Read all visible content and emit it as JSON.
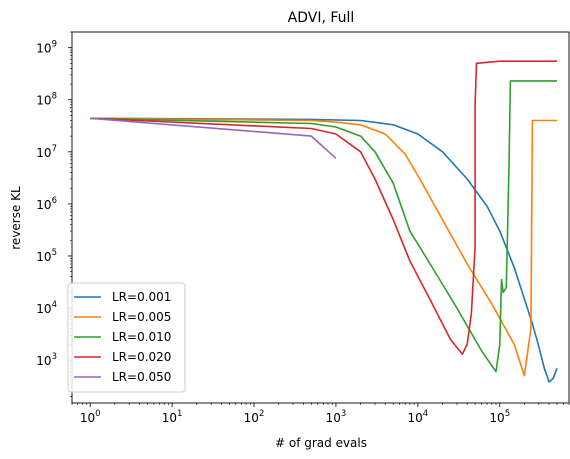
{
  "chart_data": {
    "type": "line",
    "title": "ADVI, Full",
    "xlabel": "# of grad evals",
    "ylabel": "reverse KL",
    "xscale": "log",
    "yscale": "log",
    "xlim": [
      0.6,
      700000
    ],
    "ylim": [
      150,
      2000000000
    ],
    "x_ticks": [
      {
        "base": "10",
        "exp": "0",
        "value": 1
      },
      {
        "base": "10",
        "exp": "1",
        "value": 10
      },
      {
        "base": "10",
        "exp": "2",
        "value": 100
      },
      {
        "base": "10",
        "exp": "3",
        "value": 1000
      },
      {
        "base": "10",
        "exp": "4",
        "value": 10000
      },
      {
        "base": "10",
        "exp": "5",
        "value": 100000
      }
    ],
    "y_ticks": [
      {
        "base": "10",
        "exp": "3",
        "value": 1000
      },
      {
        "base": "10",
        "exp": "4",
        "value": 10000
      },
      {
        "base": "10",
        "exp": "5",
        "value": 100000
      },
      {
        "base": "10",
        "exp": "6",
        "value": 1000000
      },
      {
        "base": "10",
        "exp": "7",
        "value": 10000000
      },
      {
        "base": "10",
        "exp": "8",
        "value": 100000000
      },
      {
        "base": "10",
        "exp": "9",
        "value": 1000000000
      }
    ],
    "legend_position": "lower-left",
    "grid": false,
    "series": [
      {
        "name": "LR=0.001",
        "color": "#1f77b4",
        "points": [
          [
            1,
            44000000
          ],
          [
            500,
            42000000
          ],
          [
            2000,
            40000000
          ],
          [
            5000,
            33000000
          ],
          [
            10000,
            22000000
          ],
          [
            20000,
            10000000
          ],
          [
            40000,
            3000000
          ],
          [
            70000,
            900000
          ],
          [
            100000,
            300000
          ],
          [
            150000,
            60000
          ],
          [
            200000,
            15000
          ],
          [
            250000,
            5000
          ],
          [
            300000,
            1800
          ],
          [
            350000,
            700
          ],
          [
            400000,
            380
          ],
          [
            450000,
            450
          ],
          [
            500000,
            700
          ]
        ]
      },
      {
        "name": "LR=0.005",
        "color": "#ff7f0e",
        "points": [
          [
            1,
            44000000
          ],
          [
            500,
            40000000
          ],
          [
            1000,
            37000000
          ],
          [
            2000,
            33000000
          ],
          [
            4000,
            22000000
          ],
          [
            7000,
            9000000
          ],
          [
            10000,
            3500000
          ],
          [
            20000,
            500000
          ],
          [
            40000,
            70000
          ],
          [
            80000,
            12000
          ],
          [
            150000,
            2000
          ],
          [
            200000,
            500
          ],
          [
            220000,
            1500
          ],
          [
            240000,
            4000
          ],
          [
            250000,
            40000000
          ],
          [
            350000,
            40000000
          ],
          [
            500000,
            40000000
          ]
        ]
      },
      {
        "name": "LR=0.010",
        "color": "#2ca02c",
        "points": [
          [
            1,
            44000000
          ],
          [
            500,
            35000000
          ],
          [
            1000,
            30000000
          ],
          [
            2000,
            20000000
          ],
          [
            3000,
            10000000
          ],
          [
            5000,
            2500000
          ],
          [
            8000,
            300000
          ],
          [
            15000,
            60000
          ],
          [
            30000,
            10000
          ],
          [
            60000,
            1500
          ],
          [
            90000,
            600
          ],
          [
            100000,
            2000
          ],
          [
            105000,
            35000
          ],
          [
            110000,
            20000
          ],
          [
            120000,
            25000
          ],
          [
            130000,
            7000000
          ],
          [
            135000,
            230000000
          ],
          [
            200000,
            230000000
          ],
          [
            300000,
            230000000
          ],
          [
            500000,
            230000000
          ]
        ]
      },
      {
        "name": "LR=0.020",
        "color": "#d62728",
        "points": [
          [
            1,
            44000000
          ],
          [
            500,
            28000000
          ],
          [
            1000,
            22000000
          ],
          [
            2000,
            10000000
          ],
          [
            3000,
            3000000
          ],
          [
            5000,
            500000
          ],
          [
            8000,
            80000
          ],
          [
            15000,
            12000
          ],
          [
            25000,
            2500
          ],
          [
            35000,
            1300
          ],
          [
            40000,
            2000
          ],
          [
            45000,
            8000
          ],
          [
            50000,
            150000
          ],
          [
            50000,
            80000000
          ],
          [
            52000,
            500000000
          ],
          [
            100000,
            550000000
          ],
          [
            200000,
            550000000
          ],
          [
            300000,
            550000000
          ],
          [
            500000,
            550000000
          ]
        ]
      },
      {
        "name": "LR=0.050",
        "color": "#9467bd",
        "points": [
          [
            1,
            44000000
          ],
          [
            500,
            20000000
          ],
          [
            1000,
            7500000
          ]
        ]
      }
    ]
  }
}
